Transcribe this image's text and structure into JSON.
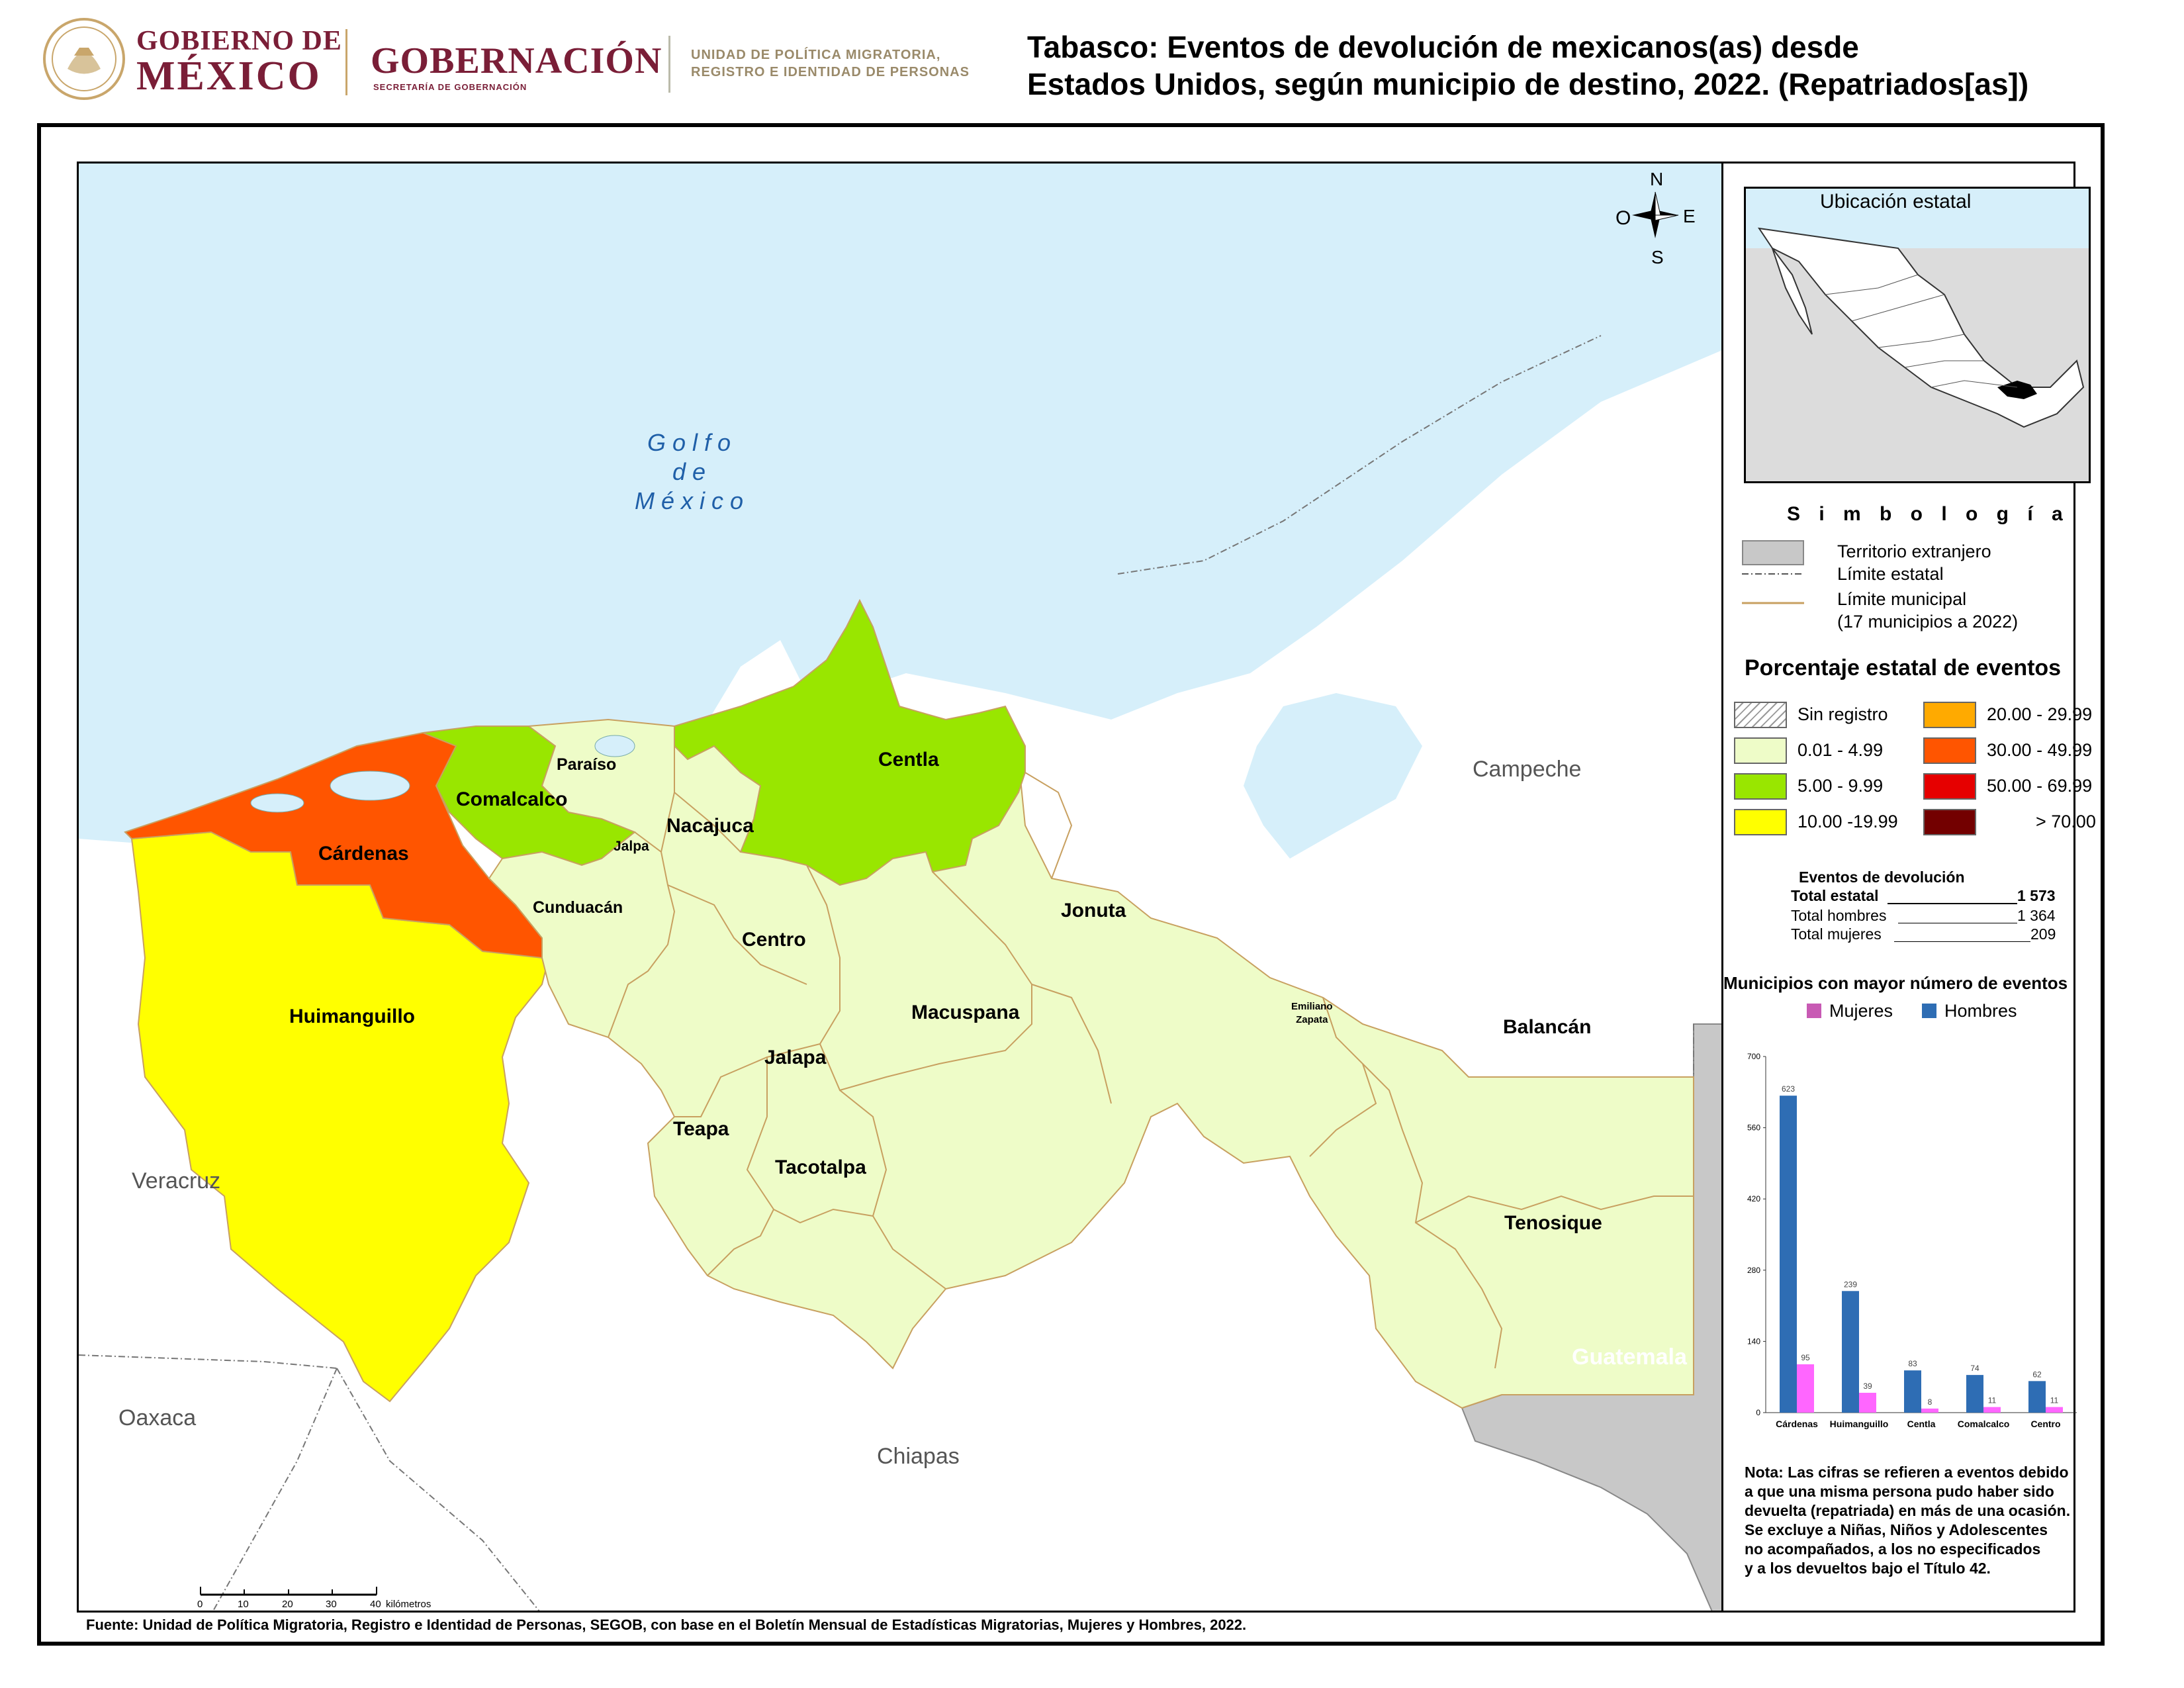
{
  "header": {
    "gob_line1": "GOBIERNO DE",
    "gob_line2": "MÉXICO",
    "gobernacion": "GOBERNACIÓN",
    "gobernacion_sub": "SECRETARÍA DE GOBERNACIÓN",
    "unidad_line1": "UNIDAD DE POLÍTICA MIGRATORIA,",
    "unidad_line2": "REGISTRO E IDENTIDAD DE PERSONAS",
    "title_line1": "Tabasco: Eventos de devolución de mexicanos(as) desde",
    "title_line2": "Estados Unidos, según municipio de destino, 2022. (Repatriados[as])"
  },
  "map": {
    "sea_label": [
      "G o l f o",
      "d e",
      "M é x i c o"
    ],
    "compass": {
      "n": "N",
      "s": "S",
      "e": "E",
      "w": "O"
    },
    "regions": {
      "veracruz": "Veracruz",
      "oaxaca": "Oaxaca",
      "chiapas": "Chiapas",
      "campeche": "Campeche",
      "guatemala": "Guatemala"
    },
    "municipalities": [
      {
        "name": "Cárdenas",
        "class": "30.00 - 49.99"
      },
      {
        "name": "Huimanguillo",
        "class": "10.00 -19.99"
      },
      {
        "name": "Comalcalco",
        "class": "5.00 - 9.99"
      },
      {
        "name": "Centla",
        "class": "5.00 - 9.99"
      },
      {
        "name": "Paraíso",
        "class": "0.01 - 4.99"
      },
      {
        "name": "Jalpa",
        "class": "0.01 - 4.99"
      },
      {
        "name": "Nacajuca",
        "class": "0.01 - 4.99"
      },
      {
        "name": "Cunduacán",
        "class": "0.01 - 4.99"
      },
      {
        "name": "Centro",
        "class": "0.01 - 4.99"
      },
      {
        "name": "Jonuta",
        "class": "0.01 - 4.99"
      },
      {
        "name": "Macuspana",
        "class": "0.01 - 4.99"
      },
      {
        "name": "Jalapa",
        "class": "0.01 - 4.99"
      },
      {
        "name": "Teapa",
        "class": "0.01 - 4.99"
      },
      {
        "name": "Tacotalpa",
        "class": "0.01 - 4.99"
      },
      {
        "name": "Emiliano Zapata",
        "class": "0.01 - 4.99"
      },
      {
        "name": "Balancán",
        "class": "0.01 - 4.99"
      },
      {
        "name": "Tenosique",
        "class": "0.01 - 4.99"
      }
    ],
    "emiliano_line1": "Emiliano",
    "emiliano_line2": "Zapata",
    "scale": {
      "ticks": [
        "0",
        "10",
        "20",
        "30",
        "40"
      ],
      "unit": "kilómetros"
    }
  },
  "inset": {
    "title": "Ubicación estatal"
  },
  "legend": {
    "title": "S i m b o l o g í a",
    "territorio": "Territorio extranjero",
    "limite_estatal": "Límite estatal",
    "limite_municipal": "Límite municipal",
    "municipios_note": "(17 municipios a 2022)",
    "pct_title": "Porcentaje estatal de eventos",
    "classes": [
      {
        "label": "Sin registro",
        "color": "hatch"
      },
      {
        "label": "0.01  - 4.99",
        "color": "#eefcc8"
      },
      {
        "label": "5.00  - 9.99",
        "color": "#99e600"
      },
      {
        "label": "10.00 -19.99",
        "color": "#ffff00"
      },
      {
        "label": "20.00 - 29.99",
        "color": "#ffaa00"
      },
      {
        "label": "30.00 - 49.99",
        "color": "#ff5500"
      },
      {
        "label": "50.00 - 69.99",
        "color": "#e60000"
      },
      {
        "label": "> 70.00",
        "color": "#730000"
      }
    ]
  },
  "events": {
    "title": "Eventos de devolución",
    "rows": [
      {
        "label": "Total estatal",
        "value": "1 573"
      },
      {
        "label": "Total hombres",
        "value": "1 364"
      },
      {
        "label": "Total mujeres",
        "value": "209"
      }
    ]
  },
  "chart_data": {
    "type": "bar",
    "title": "Municipios con mayor número de eventos",
    "categories": [
      "Cárdenas",
      "Huimanguillo",
      "Centla",
      "Comalcalco",
      "Centro"
    ],
    "series": [
      {
        "name": "Hombres",
        "color": "#2e6db4",
        "values": [
          623,
          239,
          83,
          74,
          62
        ]
      },
      {
        "name": "Mujeres",
        "color": "#ff66ff",
        "values": [
          95,
          39,
          8,
          11,
          11
        ]
      }
    ],
    "legend_order": [
      "Mujeres",
      "Hombres"
    ],
    "yticks": [
      "0",
      "140",
      "280",
      "420",
      "560",
      "700"
    ],
    "ylim": [
      0,
      700
    ],
    "legend_placement": "top"
  },
  "note": [
    "Nota: Las cifras se refieren a eventos debido",
    "a que una misma persona pudo haber sido",
    "devuelta (repatriada) en más de una ocasión.",
    "Se excluye a Niñas, Niños y Adolescentes",
    "no acompañados, a los no especificados",
    "y a los devueltos bajo el Título 42."
  ],
  "source": "Fuente: Unidad de Política Migratoria, Registro e Identidad de Personas, SEGOB, con base en el Boletín Mensual de Estadísticas Migratorias, Mujeres y Hombres, 2022."
}
